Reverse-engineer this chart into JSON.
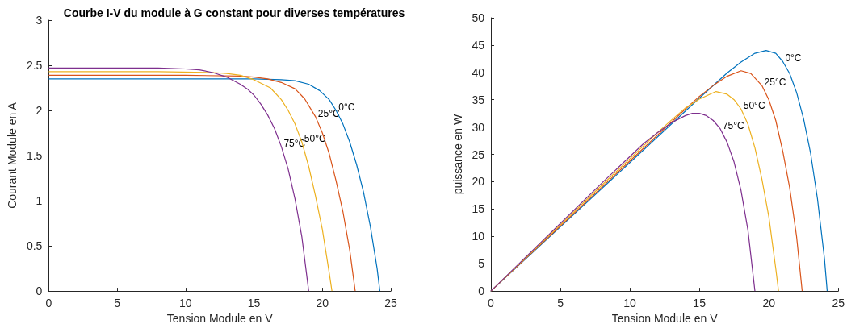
{
  "chart_data": [
    {
      "type": "line",
      "title": "Courbe I-V du module à G constant pour diverses températures",
      "xlabel": "Tension Module en V",
      "ylabel": "Courant Module en A",
      "xlim": [
        0,
        25
      ],
      "xticks": [
        0,
        5,
        10,
        15,
        20,
        25
      ],
      "ylim": [
        0,
        3
      ],
      "yticks": [
        0,
        0.5,
        1,
        1.5,
        2,
        2.5,
        3
      ],
      "grid": false,
      "marker": "none",
      "line_style": "solid",
      "series": [
        {
          "color": "#0072bd",
          "x": [
            0,
            10,
            15,
            17,
            18,
            19,
            19.8,
            20.5,
            21,
            21.5,
            22,
            22.5,
            23,
            23.5,
            24,
            24.2
          ],
          "values": [
            2.35,
            2.35,
            2.35,
            2.34,
            2.33,
            2.29,
            2.22,
            2.12,
            2.0,
            1.85,
            1.65,
            1.4,
            1.1,
            0.72,
            0.25,
            0
          ]
        },
        {
          "color": "#d95319",
          "x": [
            0,
            10,
            14,
            15,
            16,
            17,
            18,
            18.7,
            19.5,
            20,
            20.5,
            21,
            21.5,
            22,
            22.4
          ],
          "values": [
            2.39,
            2.39,
            2.38,
            2.37,
            2.35,
            2.31,
            2.24,
            2.13,
            1.93,
            1.75,
            1.52,
            1.22,
            0.88,
            0.45,
            0
          ]
        },
        {
          "color": "#edb120",
          "x": [
            0,
            8,
            12,
            13,
            14,
            15,
            16.2,
            17,
            17.5,
            18,
            18.5,
            19,
            19.5,
            20,
            20.5,
            20.7
          ],
          "values": [
            2.43,
            2.43,
            2.42,
            2.41,
            2.39,
            2.34,
            2.25,
            2.12,
            2.0,
            1.85,
            1.65,
            1.38,
            1.05,
            0.68,
            0.2,
            0
          ]
        },
        {
          "color": "#7e2f8e",
          "x": [
            0,
            8,
            10,
            11,
            12,
            13,
            14,
            14.5,
            15,
            15.5,
            16,
            16.5,
            17,
            17.5,
            18,
            18.5,
            19
          ],
          "values": [
            2.47,
            2.47,
            2.46,
            2.45,
            2.42,
            2.37,
            2.29,
            2.24,
            2.17,
            2.07,
            1.95,
            1.8,
            1.6,
            1.35,
            1.02,
            0.6,
            0
          ]
        }
      ],
      "annotations": [
        {
          "text": "0°C",
          "x": 21,
          "y": 2.0
        },
        {
          "text": "25°C",
          "x": 19.5,
          "y": 1.93
        },
        {
          "text": "50°C",
          "x": 18.5,
          "y": 1.65
        },
        {
          "text": "75°C",
          "x": 17,
          "y": 1.6
        }
      ]
    },
    {
      "type": "line",
      "xlabel": "Tension Module en V",
      "ylabel": "puissance en W",
      "xlim": [
        0,
        25
      ],
      "xticks": [
        0,
        5,
        10,
        15,
        20,
        25
      ],
      "ylim": [
        0,
        50
      ],
      "yticks": [
        0,
        5,
        10,
        15,
        20,
        25,
        30,
        35,
        40,
        45,
        50
      ],
      "grid": false,
      "marker": "none",
      "line_style": "solid",
      "series": [
        {
          "color": "#0072bd",
          "x": [
            0,
            10,
            15,
            17,
            18,
            19,
            19.8,
            20.5,
            21,
            21.5,
            22,
            22.5,
            23,
            23.5,
            24,
            24.2
          ],
          "values": [
            0,
            23.5,
            35.3,
            39.9,
            41.9,
            43.5,
            44.0,
            43.5,
            42.0,
            39.8,
            36.3,
            31.5,
            25.3,
            16.9,
            6.0,
            0
          ]
        },
        {
          "color": "#d95319",
          "x": [
            0,
            10,
            14,
            15,
            16,
            17,
            18,
            18.7,
            19.5,
            20,
            20.5,
            21,
            21.5,
            22,
            22.4
          ],
          "values": [
            0,
            23.8,
            33.3,
            35.6,
            37.6,
            39.3,
            40.3,
            39.8,
            37.6,
            35.0,
            31.2,
            25.6,
            18.9,
            9.9,
            0
          ]
        },
        {
          "color": "#edb120",
          "x": [
            0,
            8,
            12,
            13,
            14,
            15,
            16.2,
            17,
            17.5,
            18,
            18.5,
            19,
            19.5,
            20,
            20.5,
            20.7
          ],
          "values": [
            0,
            19.4,
            29.0,
            31.3,
            33.5,
            35.1,
            36.5,
            36.0,
            35.0,
            33.3,
            30.5,
            26.2,
            20.5,
            13.6,
            4.1,
            0
          ]
        },
        {
          "color": "#7e2f8e",
          "x": [
            0,
            8,
            10,
            11,
            12,
            13,
            14,
            14.5,
            15,
            15.5,
            16,
            16.5,
            17,
            17.5,
            18,
            18.5,
            19
          ],
          "values": [
            0,
            19.8,
            24.6,
            27.0,
            29.0,
            30.8,
            32.1,
            32.5,
            32.5,
            32.1,
            31.2,
            29.7,
            27.2,
            23.6,
            18.4,
            11.1,
            0
          ]
        }
      ],
      "annotations": [
        {
          "text": "0°C",
          "x": 21,
          "y": 42.0
        },
        {
          "text": "25°C",
          "x": 19.5,
          "y": 37.6
        },
        {
          "text": "50°C",
          "x": 18,
          "y": 33.3
        },
        {
          "text": "75°C",
          "x": 16.5,
          "y": 29.7
        }
      ]
    }
  ]
}
